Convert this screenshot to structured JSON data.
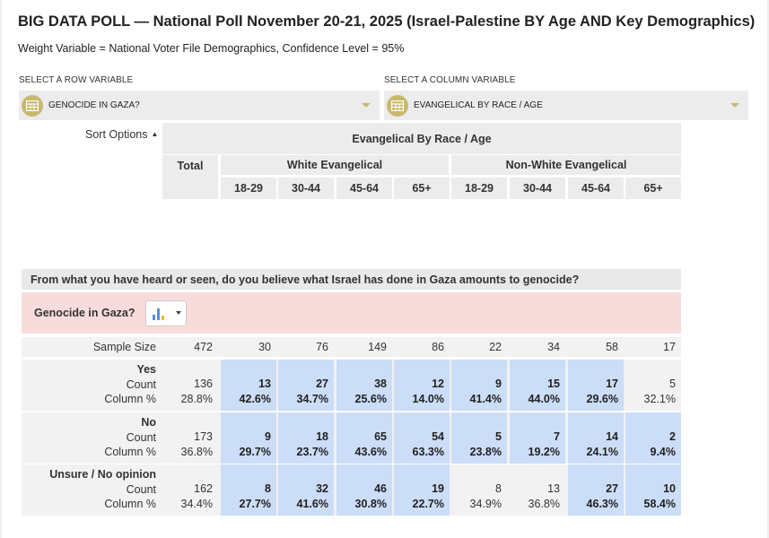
{
  "title": "BIG DATA POLL — National Poll November 20-21, 2025 (Israel-Palestine BY Age AND Key Demographics)",
  "subtitle": "Weight Variable = National Voter File Demographics, Confidence Level = 95%",
  "row_selector": {
    "label": "SELECT A ROW VARIABLE",
    "value": "GENOCIDE IN GAZA?",
    "icon": "table-icon"
  },
  "column_selector": {
    "label": "SELECT A COLUMN VARIABLE",
    "value": "EVANGELICAL BY RACE / AGE",
    "icon": "table-icon"
  },
  "sort_options": "Sort Options",
  "header": {
    "banner": "Evangelical By Race / Age",
    "total": "Total",
    "groups": [
      "White Evangelical",
      "Non-White Evangelical"
    ],
    "ages": [
      "18-29",
      "30-44",
      "45-64",
      "65+",
      "18-29",
      "30-44",
      "45-64",
      "65+"
    ]
  },
  "question": "From what you have heard or seen, do you believe what Israel has done in Gaza amounts to genocide?",
  "variable_label": "Genocide in Gaza?",
  "chart_button_icon": "bar-chart-icon",
  "colors": {
    "highlight": "#cbddf7",
    "accent": "#c9b96e",
    "pink": "#f8dcdc"
  },
  "sample_size": {
    "label": "Sample Size",
    "values": [
      "472",
      "30",
      "76",
      "149",
      "86",
      "22",
      "34",
      "58",
      "17"
    ]
  },
  "rows": [
    {
      "name": "Yes",
      "count_label": "Count",
      "pct_label": "Column %",
      "counts": [
        "136",
        "13",
        "27",
        "38",
        "12",
        "9",
        "15",
        "17",
        "5"
      ],
      "pcts": [
        "28.8%",
        "42.6%",
        "34.7%",
        "25.6%",
        "14.0%",
        "41.4%",
        "44.0%",
        "29.6%",
        "32.1%"
      ],
      "highlight": [
        false,
        true,
        true,
        true,
        true,
        true,
        true,
        true,
        false
      ]
    },
    {
      "name": "No",
      "count_label": "Count",
      "pct_label": "Column %",
      "counts": [
        "173",
        "9",
        "18",
        "65",
        "54",
        "5",
        "7",
        "14",
        "2"
      ],
      "pcts": [
        "36.8%",
        "29.7%",
        "23.7%",
        "43.6%",
        "63.3%",
        "23.8%",
        "19.2%",
        "24.1%",
        "9.4%"
      ],
      "highlight": [
        false,
        true,
        true,
        true,
        true,
        true,
        true,
        true,
        true
      ]
    },
    {
      "name": "Unsure / No opinion",
      "count_label": "Count",
      "pct_label": "Column %",
      "counts": [
        "162",
        "8",
        "32",
        "46",
        "19",
        "8",
        "13",
        "27",
        "10"
      ],
      "pcts": [
        "34.4%",
        "27.7%",
        "41.6%",
        "30.8%",
        "22.7%",
        "34.9%",
        "36.8%",
        "46.3%",
        "58.4%"
      ],
      "highlight": [
        false,
        true,
        true,
        true,
        true,
        false,
        false,
        true,
        true
      ]
    }
  ]
}
